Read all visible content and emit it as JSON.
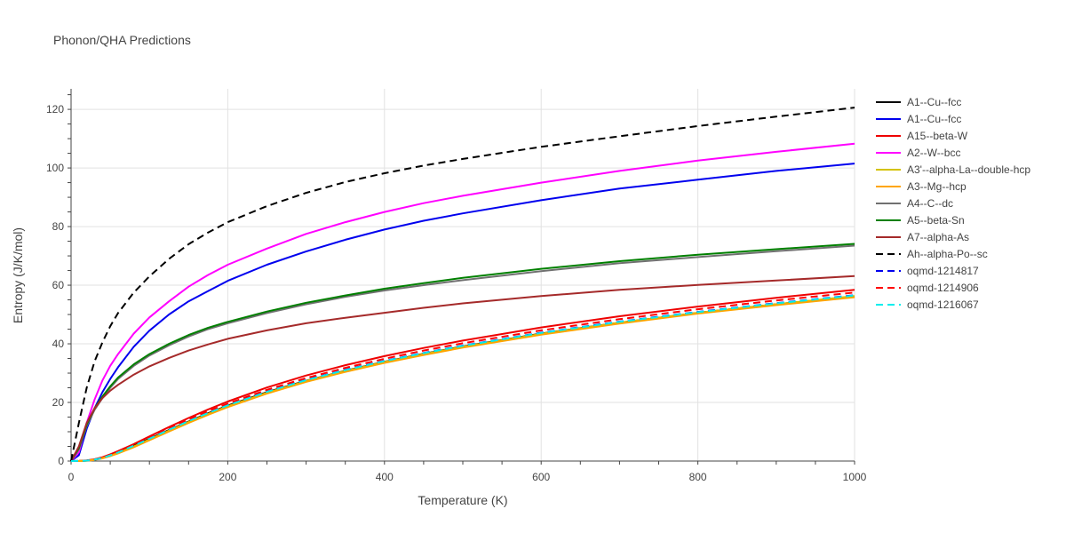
{
  "chart_data": {
    "type": "line",
    "title": "Phonon/QHA Predictions",
    "xlabel": "Temperature (K)",
    "ylabel": "Entropy (J/K/mol)",
    "xlim": [
      0,
      1000
    ],
    "ylim": [
      0,
      127
    ],
    "xticks": [
      "0",
      "200",
      "400",
      "600",
      "800",
      "1000"
    ],
    "yticks": [
      "0",
      "20",
      "40",
      "60",
      "80",
      "100",
      "120"
    ],
    "grid": true,
    "legend_position": "right",
    "x": [
      0,
      10,
      20,
      30,
      40,
      50,
      60,
      80,
      100,
      125,
      150,
      175,
      200,
      250,
      300,
      350,
      400,
      450,
      500,
      600,
      700,
      800,
      900,
      1000
    ],
    "series": [
      {
        "name": "A1--Cu--fcc",
        "color": "#000000",
        "dash": "solid",
        "values": [
          0,
          0.02,
          0.15,
          0.5,
          1.1,
          2.0,
          3.0,
          5.2,
          7.6,
          10.6,
          13.5,
          16.3,
          18.9,
          23.5,
          27.4,
          30.8,
          33.9,
          36.6,
          39.1,
          43.5,
          47.2,
          50.6,
          53.5,
          56.2
        ]
      },
      {
        "name": "A1--Cu--fcc",
        "color": "#0000ee",
        "dash": "solid",
        "values": [
          0,
          2,
          11,
          18,
          23.5,
          28,
          32,
          39,
          44.5,
          50,
          54.5,
          58,
          61.5,
          67,
          71.5,
          75.5,
          79,
          82,
          84.5,
          89,
          93,
          96,
          99,
          101.5
        ]
      },
      {
        "name": "A15--beta-W",
        "color": "#ee0000",
        "dash": "solid",
        "values": [
          0,
          0.03,
          0.2,
          0.6,
          1.3,
          2.3,
          3.4,
          5.8,
          8.4,
          11.6,
          14.7,
          17.6,
          20.3,
          25.1,
          29.2,
          32.7,
          35.8,
          38.6,
          41.1,
          45.6,
          49.4,
          52.7,
          55.7,
          58.4
        ]
      },
      {
        "name": "A2--W--bcc",
        "color": "#ff00ff",
        "dash": "solid",
        "values": [
          0,
          3,
          13,
          21,
          27.5,
          32.5,
          36.5,
          43.5,
          49,
          54.5,
          59.5,
          63.5,
          67,
          72.5,
          77.5,
          81.5,
          85,
          88,
          90.5,
          95,
          99,
          102.5,
          105.5,
          108.3
        ]
      },
      {
        "name": "A3'--alpha-La--double-hcp",
        "color": "#d4c200",
        "dash": "solid",
        "values": [
          0,
          0.02,
          0.12,
          0.45,
          1.0,
          1.8,
          2.8,
          5.0,
          7.4,
          10.4,
          13.3,
          16.1,
          18.7,
          23.3,
          27.3,
          30.7,
          33.8,
          36.5,
          39.0,
          43.4,
          47.2,
          50.6,
          53.5,
          56.3
        ]
      },
      {
        "name": "A3--Mg--hcp",
        "color": "#ffa500",
        "dash": "solid",
        "values": [
          0,
          0.01,
          0.1,
          0.4,
          0.9,
          1.7,
          2.6,
          4.7,
          7.1,
          10.1,
          13.0,
          15.8,
          18.4,
          23.0,
          27.0,
          30.4,
          33.5,
          36.2,
          38.7,
          43.1,
          46.9,
          50.3,
          53.2,
          55.9
        ]
      },
      {
        "name": "A4--C--dc",
        "color": "#707070",
        "dash": "solid",
        "values": [
          0,
          4,
          12,
          17.5,
          21.5,
          25,
          28,
          32.5,
          36,
          39.5,
          42.5,
          45,
          47,
          50.5,
          53.5,
          56,
          58.2,
          60,
          61.7,
          64.8,
          67.5,
          69.6,
          71.6,
          73.5
        ]
      },
      {
        "name": "A5--beta-Sn",
        "color": "#008000",
        "dash": "solid",
        "values": [
          0,
          4.5,
          12.5,
          18,
          22,
          25.5,
          28.5,
          33,
          36.5,
          40,
          43,
          45.5,
          47.5,
          51,
          54,
          56.5,
          58.8,
          60.7,
          62.5,
          65.6,
          68.2,
          70.4,
          72.3,
          74.1
        ]
      },
      {
        "name": "A7--alpha-As",
        "color": "#a52a2a",
        "dash": "solid",
        "values": [
          0,
          5,
          13,
          18,
          21.5,
          24,
          26,
          29.5,
          32.3,
          35.2,
          37.7,
          39.8,
          41.7,
          44.6,
          47,
          48.9,
          50.6,
          52.3,
          53.8,
          56.3,
          58.4,
          60.1,
          61.6,
          63.1
        ]
      },
      {
        "name": "Ah--alpha-Po--sc",
        "color": "#000000",
        "dash": "dash",
        "values": [
          0,
          13,
          25,
          34,
          40.5,
          46,
          50.5,
          57.5,
          63,
          69,
          74,
          78,
          81.5,
          87,
          91.5,
          95.2,
          98.2,
          100.8,
          103.1,
          107.2,
          110.8,
          114.3,
          117.5,
          120.6
        ]
      },
      {
        "name": "oqmd-1214817",
        "color": "#0000ee",
        "dash": "dash",
        "values": [
          0,
          0.02,
          0.15,
          0.5,
          1.1,
          2.0,
          3.0,
          5.3,
          7.7,
          10.8,
          13.7,
          16.5,
          19.1,
          23.7,
          27.7,
          31.1,
          34.2,
          36.9,
          39.4,
          43.8,
          47.6,
          50.9,
          53.9,
          56.6
        ]
      },
      {
        "name": "oqmd-1214906",
        "color": "#ff0000",
        "dash": "dash",
        "values": [
          0,
          0.03,
          0.18,
          0.55,
          1.2,
          2.2,
          3.3,
          5.6,
          8.1,
          11.2,
          14.2,
          17.0,
          19.6,
          24.3,
          28.3,
          31.8,
          34.9,
          37.7,
          40.2,
          44.6,
          48.4,
          51.8,
          54.8,
          57.5
        ]
      },
      {
        "name": "oqmd-1216067",
        "color": "#00eeee",
        "dash": "dash",
        "values": [
          0,
          0.02,
          0.14,
          0.48,
          1.05,
          1.95,
          2.95,
          5.2,
          7.6,
          10.7,
          13.6,
          16.4,
          19.0,
          23.6,
          27.6,
          31.0,
          34.1,
          36.8,
          39.3,
          43.7,
          47.5,
          50.8,
          53.8,
          56.5
        ]
      }
    ]
  }
}
